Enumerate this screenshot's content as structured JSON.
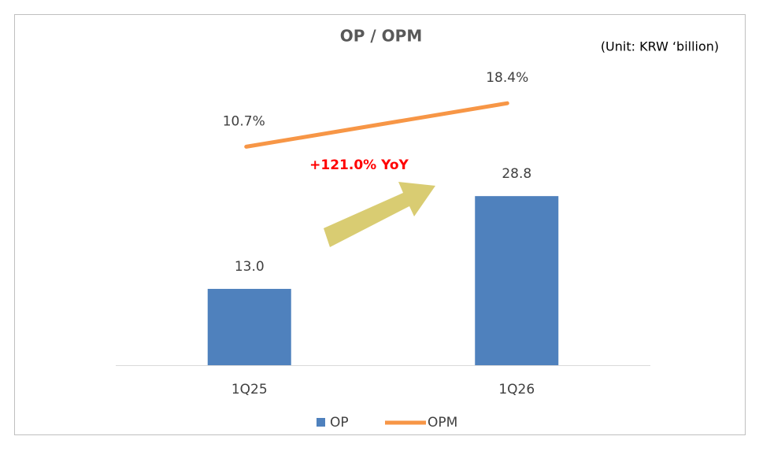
{
  "chart_data": {
    "type": "bar",
    "title": "OP / OPM",
    "subtitle": "(Unit: KRW ‘billion)",
    "annotation": "+121.0% YoY",
    "categories": [
      "1Q25",
      "1Q26"
    ],
    "series": [
      {
        "name": "OP",
        "type": "bar",
        "color": "#4f81bd",
        "values": [
          13.0,
          28.8
        ],
        "value_labels": [
          "13.0",
          "28.8"
        ]
      },
      {
        "name": "OPM",
        "type": "line",
        "axis": "y2",
        "color": "#f79646",
        "values": [
          10.7,
          18.4
        ],
        "value_labels": [
          "10.7%",
          "18.4%"
        ]
      }
    ],
    "ylim": [
      0,
      50
    ],
    "y2lim": [
      -28,
      24
    ],
    "legend": "bottom"
  }
}
